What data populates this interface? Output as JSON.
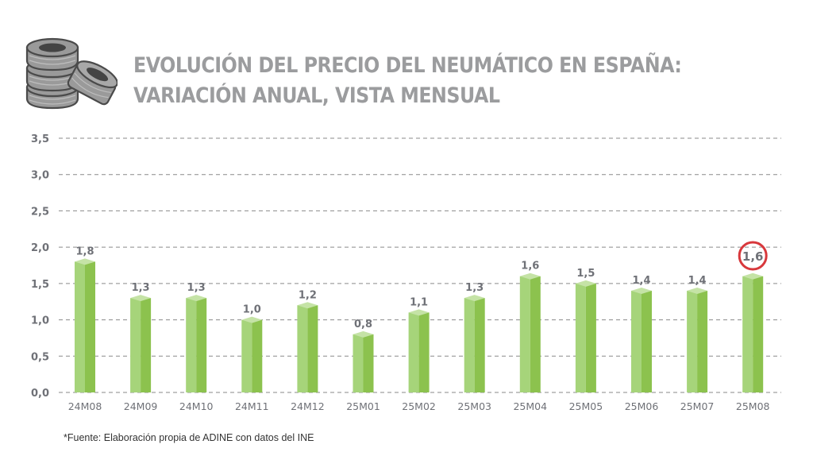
{
  "header": {
    "title_line1": "EVOLUCIÓN DEL PRECIO DEL NEUMÁTICO EN ESPAÑA:",
    "title_line2": "VARIACIÓN ANUAL, VISTA MENSUAL",
    "logo_icon": "tire-stack-icon"
  },
  "footer": {
    "source": "*Fuente: Elaboración propia de ADINE con datos del INE"
  },
  "colors": {
    "title": "#9b9c9e",
    "axis_text": "#6f7177",
    "grid": "#8a8a8a",
    "bar_front": "#a6d47a",
    "bar_side": "#8cc24e",
    "bar_top": "#c5e3a6",
    "highlight": "#d8383c"
  },
  "chart_data": {
    "type": "bar",
    "title": "EVOLUCIÓN DEL PRECIO DEL NEUMÁTICO EN ESPAÑA: VARIACIÓN ANUAL, VISTA MENSUAL",
    "xlabel": "",
    "ylabel": "",
    "categories": [
      "24M08",
      "24M09",
      "24M10",
      "24M11",
      "24M12",
      "25M01",
      "25M02",
      "25M03",
      "25M04",
      "25M05",
      "25M06",
      "25M07",
      "25M08"
    ],
    "values": [
      1.8,
      1.3,
      1.3,
      1.0,
      1.2,
      0.8,
      1.1,
      1.3,
      1.6,
      1.5,
      1.4,
      1.4,
      1.6
    ],
    "value_labels": [
      "1,8",
      "1,3",
      "1,3",
      "1,0",
      "1,2",
      "0,8",
      "1,1",
      "1,3",
      "1,6",
      "1,5",
      "1,4",
      "1,4",
      "1,6"
    ],
    "ylim": [
      0,
      3.5
    ],
    "yticks": [
      0,
      0.5,
      1.0,
      1.5,
      2.0,
      2.5,
      3.0,
      3.5
    ],
    "ytick_labels": [
      "0,0",
      "0,5",
      "1,0",
      "1,5",
      "2,0",
      "2,5",
      "3,0",
      "3,5"
    ],
    "grid": true,
    "grid_style": "dashed",
    "legend": "none",
    "highlighted_category": "25M08",
    "annotations": [
      {
        "category": "25M08",
        "type": "circle",
        "text": "1,6"
      }
    ]
  }
}
